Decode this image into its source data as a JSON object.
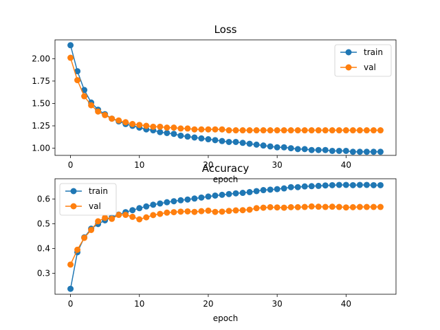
{
  "colors": {
    "train": "#1f77b4",
    "val": "#ff7f0e"
  },
  "chart_data": [
    {
      "type": "line",
      "title": "Loss",
      "xlabel": "epoch",
      "ylabel": "",
      "xlim": [
        -2.25,
        47.25
      ],
      "ylim": [
        0.92,
        2.21
      ],
      "xticks": [
        0,
        10,
        20,
        30,
        40
      ],
      "xtick_labels": [
        "0",
        "10",
        "20",
        "30",
        "40"
      ],
      "yticks": [
        1.0,
        1.25,
        1.5,
        1.75,
        2.0
      ],
      "ytick_labels": [
        "1.00",
        "1.25",
        "1.50",
        "1.75",
        "2.00"
      ],
      "grid": false,
      "legend": "top-right",
      "x": [
        0,
        1,
        2,
        3,
        4,
        5,
        6,
        7,
        8,
        9,
        10,
        11,
        12,
        13,
        14,
        15,
        16,
        17,
        18,
        19,
        20,
        21,
        22,
        23,
        24,
        25,
        26,
        27,
        28,
        29,
        30,
        31,
        32,
        33,
        34,
        35,
        36,
        37,
        38,
        39,
        40,
        41,
        42,
        43,
        44,
        45
      ],
      "series": [
        {
          "name": "train",
          "color": "#1f77b4",
          "values": [
            2.15,
            1.86,
            1.65,
            1.51,
            1.43,
            1.38,
            1.33,
            1.3,
            1.27,
            1.25,
            1.23,
            1.21,
            1.2,
            1.18,
            1.17,
            1.16,
            1.14,
            1.13,
            1.12,
            1.11,
            1.1,
            1.09,
            1.08,
            1.07,
            1.07,
            1.06,
            1.05,
            1.04,
            1.03,
            1.02,
            1.01,
            1.01,
            1.0,
            0.99,
            0.99,
            0.98,
            0.98,
            0.98,
            0.97,
            0.97,
            0.97,
            0.96,
            0.96,
            0.96,
            0.96,
            0.96
          ]
        },
        {
          "name": "val",
          "color": "#ff7f0e",
          "values": [
            2.01,
            1.76,
            1.58,
            1.48,
            1.41,
            1.37,
            1.33,
            1.31,
            1.29,
            1.27,
            1.26,
            1.25,
            1.24,
            1.24,
            1.23,
            1.23,
            1.22,
            1.22,
            1.21,
            1.21,
            1.21,
            1.21,
            1.21,
            1.2,
            1.2,
            1.2,
            1.2,
            1.2,
            1.2,
            1.2,
            1.2,
            1.2,
            1.2,
            1.2,
            1.2,
            1.2,
            1.2,
            1.2,
            1.2,
            1.2,
            1.2,
            1.2,
            1.2,
            1.2,
            1.2,
            1.2
          ]
        }
      ]
    },
    {
      "type": "line",
      "title": "Accuracy",
      "xlabel": "epoch",
      "ylabel": "",
      "xlim": [
        -2.25,
        47.25
      ],
      "ylim": [
        0.215,
        0.682
      ],
      "xticks": [
        0,
        10,
        20,
        30,
        40
      ],
      "xtick_labels": [
        "0",
        "10",
        "20",
        "30",
        "40"
      ],
      "yticks": [
        0.3,
        0.4,
        0.5,
        0.6
      ],
      "ytick_labels": [
        "0.3",
        "0.4",
        "0.5",
        "0.6"
      ],
      "grid": false,
      "legend": "top-left",
      "x": [
        0,
        1,
        2,
        3,
        4,
        5,
        6,
        7,
        8,
        9,
        10,
        11,
        12,
        13,
        14,
        15,
        16,
        17,
        18,
        19,
        20,
        21,
        22,
        23,
        24,
        25,
        26,
        27,
        28,
        29,
        30,
        31,
        32,
        33,
        34,
        35,
        36,
        37,
        38,
        39,
        40,
        41,
        42,
        43,
        44,
        45
      ],
      "series": [
        {
          "name": "train",
          "color": "#1f77b4",
          "values": [
            0.237,
            0.385,
            0.445,
            0.48,
            0.499,
            0.514,
            0.526,
            0.537,
            0.547,
            0.555,
            0.563,
            0.57,
            0.577,
            0.582,
            0.587,
            0.591,
            0.595,
            0.598,
            0.602,
            0.606,
            0.61,
            0.614,
            0.617,
            0.62,
            0.623,
            0.625,
            0.628,
            0.632,
            0.636,
            0.638,
            0.64,
            0.643,
            0.648,
            0.648,
            0.651,
            0.652,
            0.653,
            0.655,
            0.656,
            0.657,
            0.657,
            0.656,
            0.657,
            0.657,
            0.656,
            0.656
          ]
        },
        {
          "name": "val",
          "color": "#ff7f0e",
          "values": [
            0.335,
            0.395,
            0.443,
            0.475,
            0.51,
            0.524,
            0.52,
            0.536,
            0.536,
            0.528,
            0.518,
            0.526,
            0.535,
            0.54,
            0.545,
            0.547,
            0.549,
            0.55,
            0.548,
            0.551,
            0.553,
            0.548,
            0.549,
            0.552,
            0.554,
            0.555,
            0.557,
            0.563,
            0.565,
            0.567,
            0.566,
            0.565,
            0.567,
            0.567,
            0.568,
            0.57,
            0.569,
            0.568,
            0.569,
            0.568,
            0.566,
            0.567,
            0.568,
            0.568,
            0.568,
            0.568
          ]
        }
      ]
    }
  ]
}
